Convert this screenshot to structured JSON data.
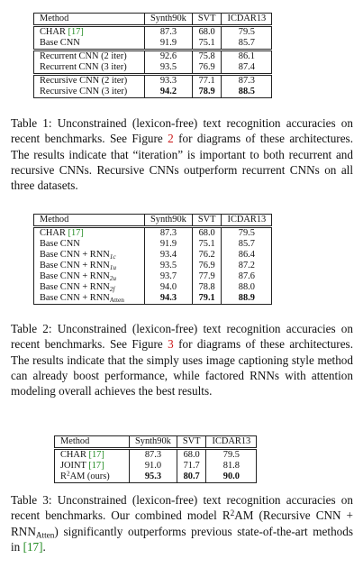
{
  "table1": {
    "header": [
      "Method",
      "Synth90k",
      "SVT",
      "ICDAR13"
    ],
    "group1": [
      {
        "method": "CHAR",
        "ref": "[17]",
        "synth": "87.3",
        "svt": "68.0",
        "icdar": "79.5"
      },
      {
        "method": "Base CNN",
        "synth": "91.9",
        "svt": "75.1",
        "icdar": "85.7"
      }
    ],
    "group2": [
      {
        "method": "Recurrent CNN (2 iter)",
        "synth": "92.6",
        "svt": "75.8",
        "icdar": "86.1"
      },
      {
        "method": "Recurrent CNN (3 iter)",
        "synth": "93.5",
        "svt": "76.9",
        "icdar": "87.4"
      }
    ],
    "group3": [
      {
        "method": "Recursive CNN (2 iter)",
        "synth": "93.3",
        "svt": "77.1",
        "icdar": "87.3"
      },
      {
        "method": "Recursive CNN (3 iter)",
        "synth": "94.2",
        "svt": "78.9",
        "icdar": "88.5"
      }
    ],
    "caption": {
      "a": "Table 1: Unconstrained (lexicon-free) text recognition accuracies on recent benchmarks. See Figure ",
      "fig": "2",
      "b": " for diagrams of these architectures. The results indicate that “iteration” is important to both recurrent and recursive CNNs. Recursive CNNs outperform recurrent CNNs on all three datasets."
    }
  },
  "table2": {
    "header": [
      "Method",
      "Synth90k",
      "SVT",
      "ICDAR13"
    ],
    "rows": [
      {
        "method": "CHAR",
        "ref": "[17]",
        "synth": "87.3",
        "svt": "68.0",
        "icdar": "79.5"
      },
      {
        "method": "Base CNN",
        "synth": "91.9",
        "svt": "75.1",
        "icdar": "85.7"
      },
      {
        "method": "Base CNN + RNN",
        "sub": "1c",
        "synth": "93.4",
        "svt": "76.2",
        "icdar": "86.4"
      },
      {
        "method": "Base CNN + RNN",
        "sub": "1u",
        "synth": "93.5",
        "svt": "76.9",
        "icdar": "87.2"
      },
      {
        "method": "Base CNN + RNN",
        "sub": "2u",
        "synth": "93.7",
        "svt": "77.9",
        "icdar": "87.6"
      },
      {
        "method": "Base CNN + RNN",
        "sub": "2f",
        "synth": "94.0",
        "svt": "78.8",
        "icdar": "88.0"
      },
      {
        "method": "Base CNN + RNN",
        "sub": "Atten",
        "synth": "94.3",
        "svt": "79.1",
        "icdar": "88.9"
      }
    ],
    "caption": {
      "a": "Table 2: Unconstrained (lexicon-free) text recognition accuracies on recent benchmarks. See Figure ",
      "fig": "3",
      "b": " for diagrams of these architectures. The results indicate that the simply uses image captioning style method can already boost performance, while factored RNNs with attention modeling overall achieves the best results."
    }
  },
  "table3": {
    "header": [
      "Method",
      "Synth90k",
      "SVT",
      "ICDAR13"
    ],
    "rows": [
      {
        "method": "CHAR",
        "ref": "[17]",
        "synth": "87.3",
        "svt": "68.0",
        "icdar": "79.5"
      },
      {
        "method": "JOINT",
        "ref": "[17]",
        "synth": "91.0",
        "svt": "71.7",
        "icdar": "81.8"
      },
      {
        "method_a": "R",
        "method_sup": "2",
        "method_b": "AM (ours)",
        "synth": "95.3",
        "svt": "80.7",
        "icdar": "90.0"
      }
    ],
    "caption": {
      "a": "Table 3: Unconstrained (lexicon-free) text recognition accuracies on recent benchmarks. Our combined model R",
      "sup": "2",
      "b": "AM (Recursive CNN + RNN",
      "sub": "Atten",
      "c": ") significantly outperforms previous state-of-the-art methods in ",
      "ref": "[17]",
      "d": "."
    }
  }
}
